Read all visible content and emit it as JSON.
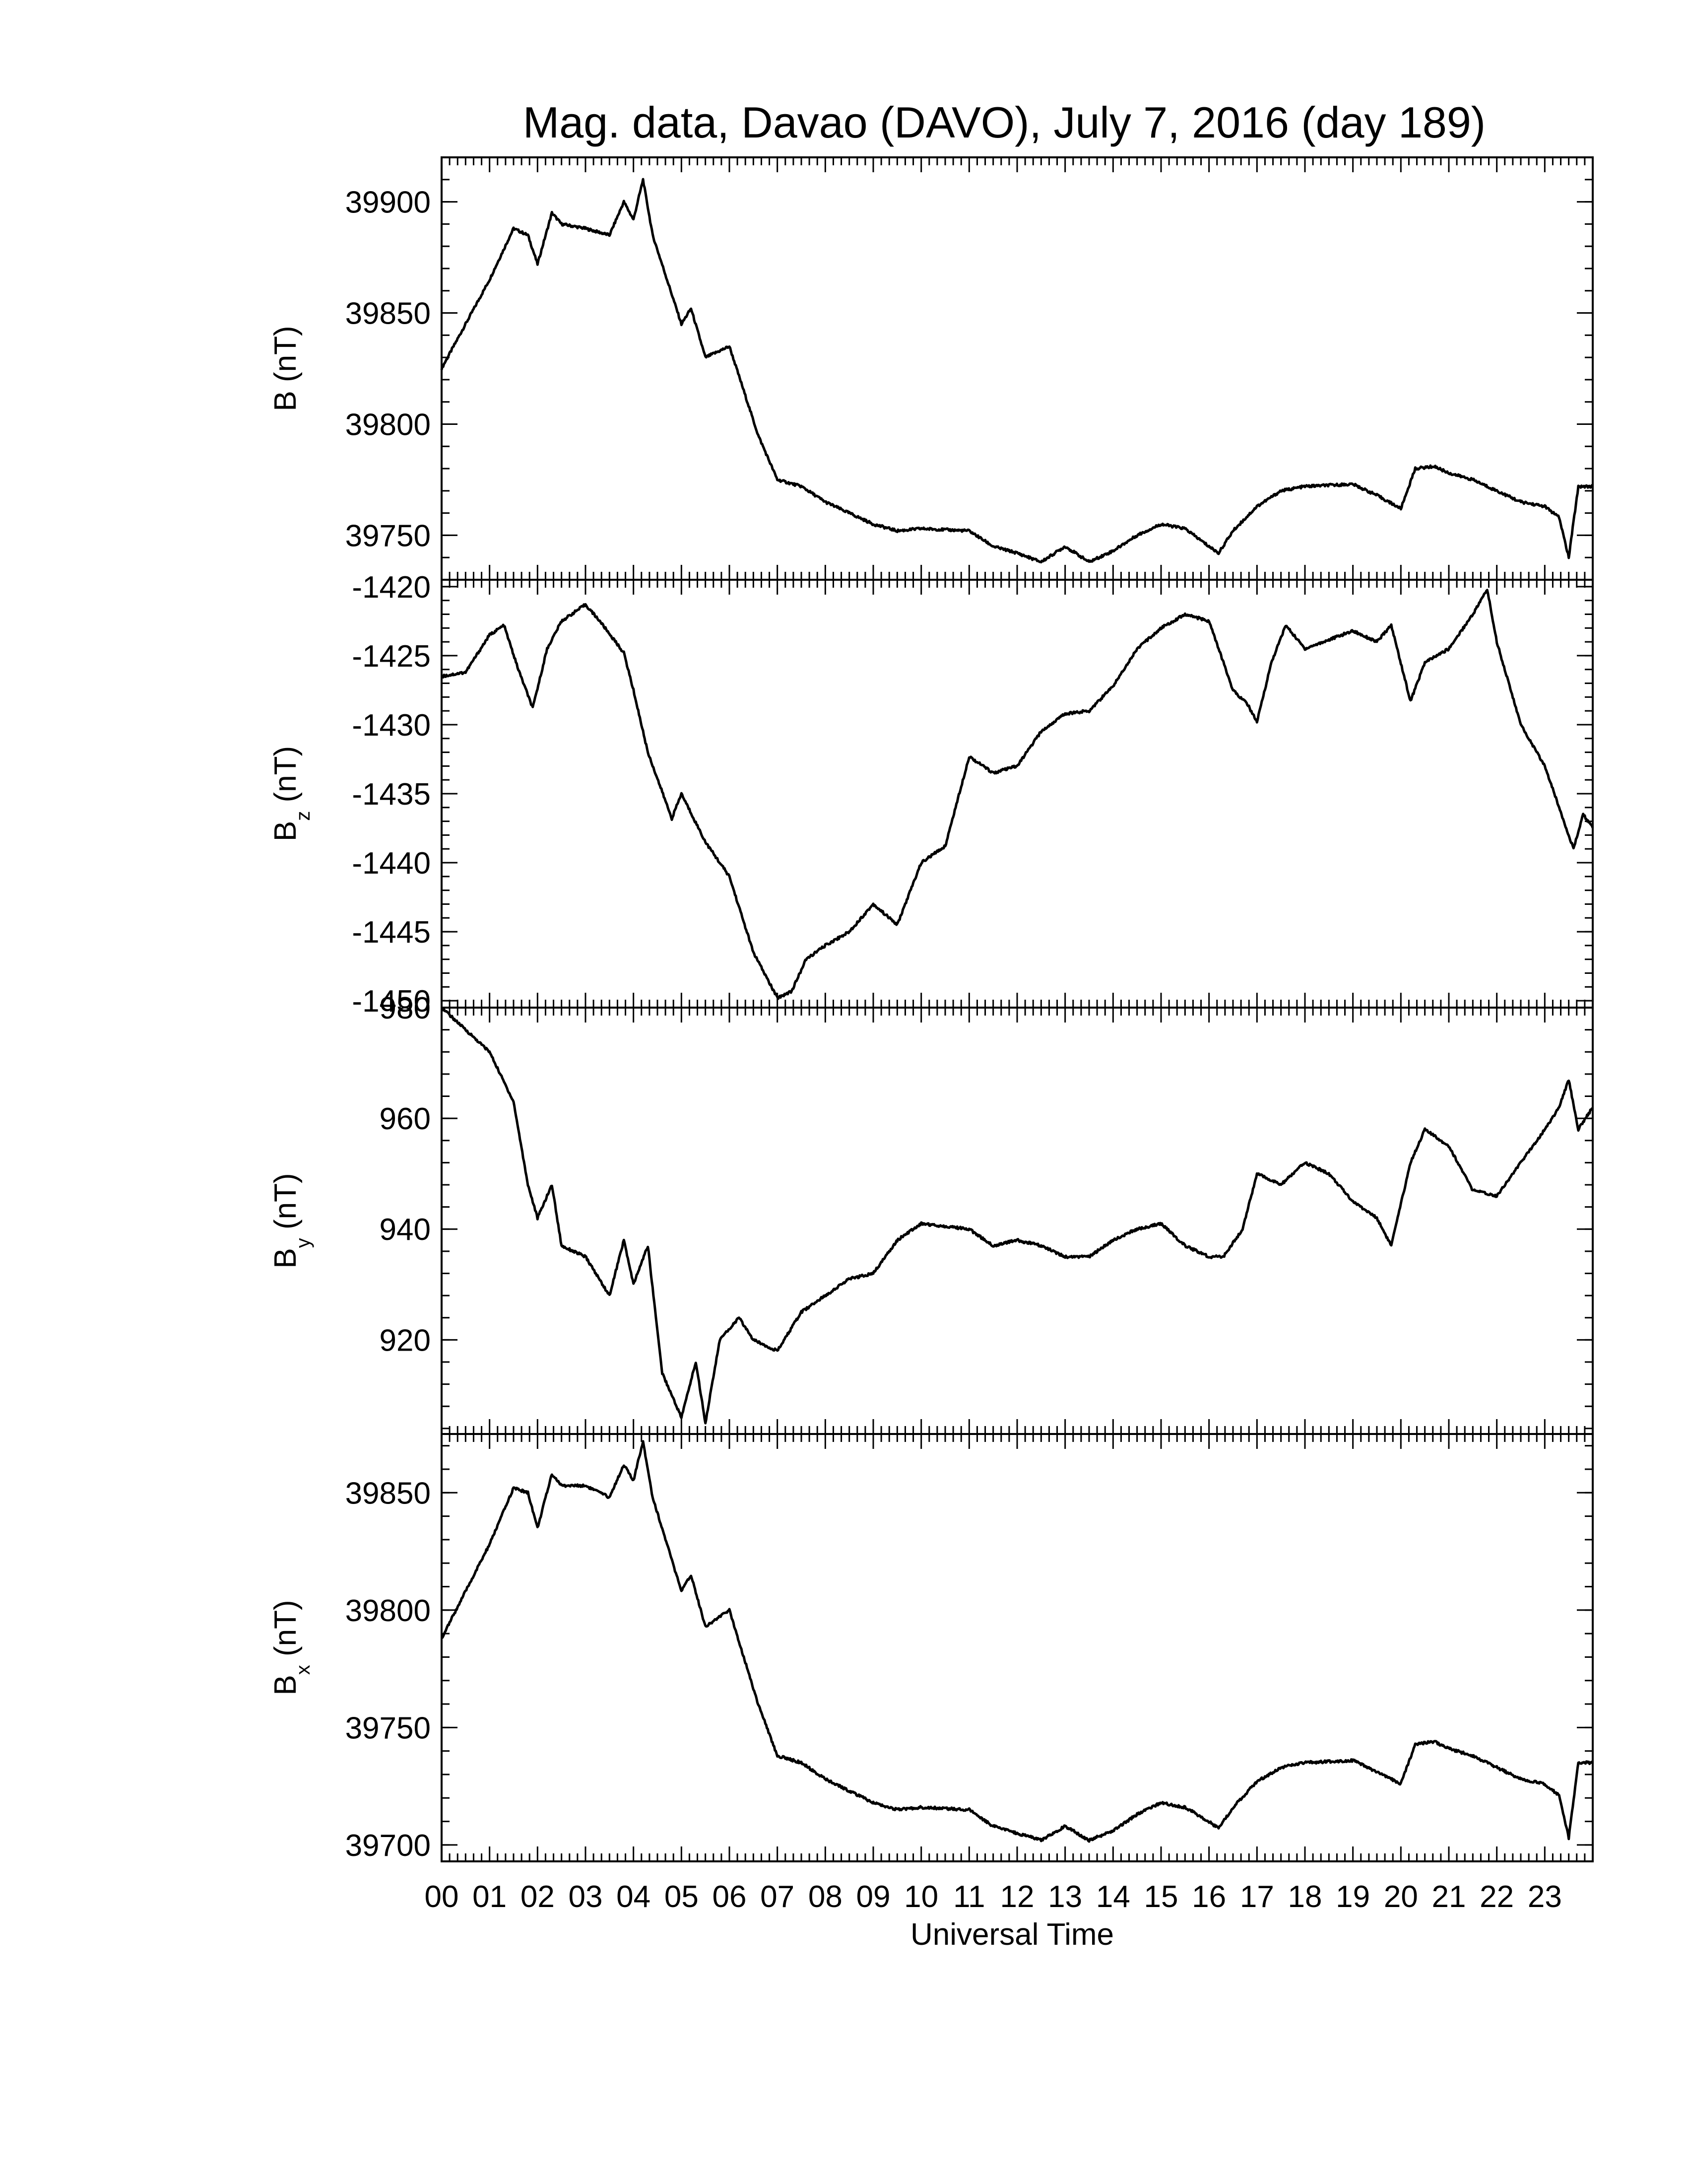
{
  "title": "Mag. data, Davao (DAVO), July 7, 2016 (day 189)",
  "colors": {
    "trace": "#000000",
    "frame": "#000000",
    "background": "#ffffff"
  },
  "chart_data": [
    {
      "type": "line",
      "panel": "B",
      "ylabel": "B (nT)",
      "ylabel_main": "B (nT)",
      "ylabel_sub": "",
      "ylabel_unit": "",
      "ylim": [
        39730,
        39920
      ],
      "yticks": [
        39750,
        39800,
        39850,
        39900
      ],
      "x": [
        0,
        0.5,
        1.0,
        1.5,
        1.8,
        2.0,
        2.3,
        2.5,
        3.0,
        3.5,
        3.8,
        4.0,
        4.2,
        4.4,
        4.7,
        5.0,
        5.2,
        5.5,
        6.0,
        6.3,
        6.6,
        7.0,
        7.5,
        8.0,
        9.0,
        9.5,
        10.0,
        11.0,
        11.5,
        12.0,
        12.5,
        13.0,
        13.5,
        14.0,
        14.5,
        15.0,
        15.5,
        16.0,
        16.2,
        16.5,
        17.0,
        17.5,
        18.0,
        19.0,
        19.5,
        20.0,
        20.3,
        20.7,
        21.0,
        21.5,
        22.0,
        22.5,
        23.0,
        23.3,
        23.5,
        23.7,
        24.0
      ],
      "series": [
        {
          "values": [
            39825,
            39845,
            39865,
            39888,
            39885,
            39872,
            39895,
            39890,
            39888,
            39885,
            39900,
            39892,
            39910,
            39885,
            39865,
            39845,
            39852,
            39830,
            39835,
            39815,
            39795,
            39775,
            39772,
            39765,
            39755,
            39752,
            39753,
            39752,
            39745,
            39742,
            39738,
            39745,
            39738,
            39743,
            39750,
            39755,
            39753,
            39745,
            39742,
            39752,
            39763,
            39770,
            39772,
            39773,
            39768,
            39762,
            39780,
            39781,
            39778,
            39775,
            39770,
            39765,
            39763,
            39758,
            39740,
            39772,
            39772
          ]
        }
      ]
    },
    {
      "type": "line",
      "panel": "Bz",
      "ylabel": "Bz (nT)",
      "ylabel_main": "B",
      "ylabel_sub": "z",
      "ylabel_unit": " (nT)",
      "ylim": [
        -1450.5,
        -1419.5
      ],
      "yticks": [
        -1450,
        -1445,
        -1440,
        -1435,
        -1430,
        -1425,
        -1420
      ],
      "x": [
        0,
        0.5,
        1.0,
        1.3,
        1.6,
        1.9,
        2.2,
        2.5,
        3.0,
        3.3,
        3.8,
        4.0,
        4.3,
        4.8,
        5.0,
        5.5,
        6.0,
        6.5,
        7.0,
        7.3,
        7.6,
        8.0,
        8.5,
        9.0,
        9.5,
        10.0,
        10.5,
        11.0,
        11.5,
        12.0,
        12.5,
        13.0,
        13.5,
        14.0,
        14.5,
        15.0,
        15.5,
        16.0,
        16.5,
        16.8,
        17.0,
        17.3,
        17.6,
        18.0,
        19.0,
        19.5,
        19.8,
        20.2,
        20.5,
        21.0,
        21.5,
        21.8,
        22.0,
        22.5,
        23.0,
        23.3,
        23.6,
        23.8,
        24.0
      ],
      "series": [
        {
          "values": [
            -1426.5,
            -1426.2,
            -1423.5,
            -1422.8,
            -1426.0,
            -1428.8,
            -1424.5,
            -1422.5,
            -1421.3,
            -1422.5,
            -1424.8,
            -1427.5,
            -1432.0,
            -1436.8,
            -1435.0,
            -1438.5,
            -1441.0,
            -1446.5,
            -1449.8,
            -1449.3,
            -1447.0,
            -1446.0,
            -1445.0,
            -1443.0,
            -1444.5,
            -1440.0,
            -1438.8,
            -1432.3,
            -1433.5,
            -1433.0,
            -1430.5,
            -1429.2,
            -1429.0,
            -1427.2,
            -1424.5,
            -1423.0,
            -1422.0,
            -1422.5,
            -1427.5,
            -1428.5,
            -1429.8,
            -1425.5,
            -1422.8,
            -1424.5,
            -1423.2,
            -1424.0,
            -1422.8,
            -1428.3,
            -1425.5,
            -1424.5,
            -1422.0,
            -1420.2,
            -1424.0,
            -1430.0,
            -1433.0,
            -1436.0,
            -1439.0,
            -1436.5,
            -1437.5
          ]
        }
      ]
    },
    {
      "type": "line",
      "panel": "By",
      "ylabel": "By (nT)",
      "ylabel_main": "B",
      "ylabel_sub": "y",
      "ylabel_unit": " (nT)",
      "ylim": [
        903,
        980
      ],
      "yticks": [
        920,
        940,
        960,
        980
      ],
      "x": [
        0,
        0.5,
        1.0,
        1.5,
        1.8,
        2.0,
        2.3,
        2.5,
        3.0,
        3.5,
        3.8,
        4.0,
        4.3,
        4.6,
        5.0,
        5.3,
        5.5,
        5.8,
        6.2,
        6.5,
        7.0,
        7.5,
        8.0,
        8.5,
        9.0,
        9.5,
        10.0,
        11.0,
        11.5,
        12.0,
        12.5,
        13.0,
        13.5,
        14.0,
        14.5,
        15.0,
        15.5,
        16.0,
        16.3,
        16.7,
        17.0,
        17.5,
        18.0,
        18.5,
        19.0,
        19.5,
        19.8,
        20.2,
        20.5,
        21.0,
        21.5,
        22.0,
        22.5,
        23.0,
        23.3,
        23.5,
        23.7,
        24.0
      ],
      "series": [
        {
          "values": [
            980,
            976,
            972,
            963,
            948,
            942,
            948,
            937,
            935,
            928,
            938,
            930,
            937,
            914,
            906,
            916,
            905,
            920,
            924,
            920,
            918,
            925,
            928,
            931,
            932,
            938,
            941,
            940,
            937,
            938,
            937,
            935,
            935,
            938,
            940,
            941,
            937,
            935,
            935,
            940,
            950,
            948,
            952,
            950,
            945,
            942,
            937,
            952,
            958,
            955,
            947,
            946,
            952,
            958,
            962,
            967,
            958,
            962
          ]
        }
      ]
    },
    {
      "type": "line",
      "panel": "Bx",
      "ylabel": "Bx (nT)",
      "ylabel_main": "B",
      "ylabel_sub": "x",
      "ylabel_unit": " (nT)",
      "ylim": [
        39693,
        39875
      ],
      "yticks": [
        39700,
        39750,
        39800,
        39850
      ],
      "x": [
        0,
        0.5,
        1.0,
        1.5,
        1.8,
        2.0,
        2.3,
        2.5,
        3.0,
        3.5,
        3.8,
        4.0,
        4.2,
        4.4,
        4.7,
        5.0,
        5.2,
        5.5,
        6.0,
        6.3,
        6.6,
        7.0,
        7.5,
        8.0,
        9.0,
        9.5,
        10.0,
        11.0,
        11.5,
        12.0,
        12.5,
        13.0,
        13.5,
        14.0,
        14.5,
        15.0,
        15.5,
        16.0,
        16.2,
        16.5,
        17.0,
        17.5,
        18.0,
        19.0,
        19.5,
        20.0,
        20.3,
        20.7,
        21.0,
        21.5,
        22.0,
        22.5,
        23.0,
        23.3,
        23.5,
        23.7,
        24.0
      ],
      "series": [
        {
          "values": [
            39788,
            39808,
            39828,
            39852,
            39850,
            39835,
            39858,
            39853,
            39853,
            39848,
            39862,
            39855,
            39872,
            39848,
            39828,
            39808,
            39815,
            39793,
            39800,
            39780,
            39760,
            39738,
            39735,
            39728,
            39718,
            39715,
            39716,
            39715,
            39708,
            39705,
            39702,
            39708,
            39702,
            39706,
            39713,
            39718,
            39716,
            39710,
            39707,
            39716,
            39727,
            39733,
            39735,
            39736,
            39731,
            39726,
            39743,
            39744,
            39741,
            39738,
            39733,
            39728,
            39726,
            39721,
            39703,
            39735,
            39735
          ]
        }
      ]
    }
  ],
  "x_axis": {
    "label": "Universal Time",
    "xlim": [
      0,
      24
    ],
    "tick_labels": [
      "00",
      "01",
      "02",
      "03",
      "04",
      "05",
      "06",
      "07",
      "08",
      "09",
      "10",
      "11",
      "12",
      "13",
      "14",
      "15",
      "16",
      "17",
      "18",
      "19",
      "20",
      "21",
      "22",
      "23"
    ]
  }
}
